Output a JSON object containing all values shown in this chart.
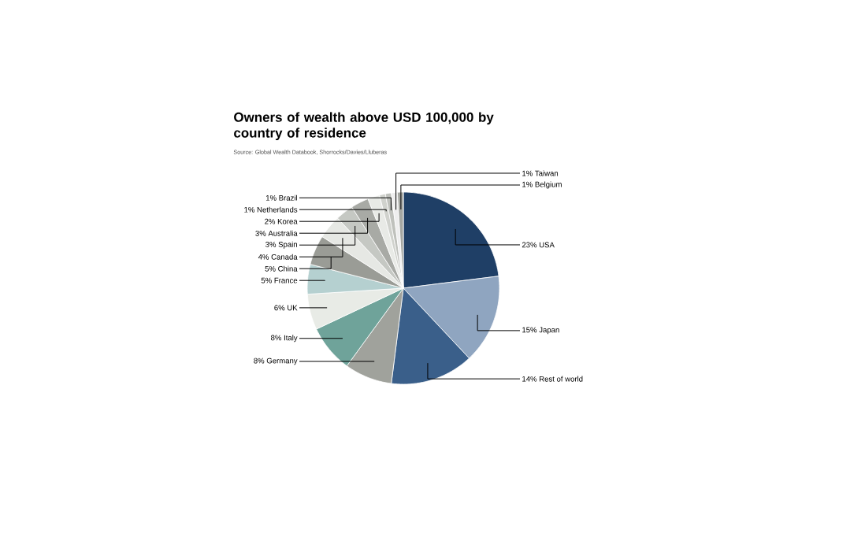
{
  "chart_data": {
    "type": "pie",
    "title": "Owners of wealth above USD 100,000 by country of residence",
    "annotations": [
      "Source: Global Wealth Databook, Shorrocks/Davies/Lluberas"
    ],
    "categories": [
      "USA",
      "Japan",
      "Rest of world",
      "Germany",
      "Italy",
      "UK",
      "France",
      "China",
      "Canada",
      "Spain",
      "Australia",
      "Korea",
      "Netherlands",
      "Brazil",
      "Taiwan",
      "Belgium"
    ],
    "values": [
      23,
      15,
      14,
      8,
      8,
      6,
      5,
      5,
      4,
      3,
      3,
      2,
      1,
      1,
      1,
      1
    ],
    "value_labels": [
      "23%",
      "15%",
      "14%",
      "8%",
      "8%",
      "6%",
      "5%",
      "5%",
      "4%",
      "3%",
      "3%",
      "2%",
      "1%",
      "1%",
      "1%",
      "1%"
    ],
    "colors": [
      "#1f3f66",
      "#8fa5c0",
      "#3a5f8a",
      "#a0a29c",
      "#6fa39a",
      "#e8ebe6",
      "#b5d0d0",
      "#9a9c96",
      "#e6e8e4",
      "#c5c8c3",
      "#a8aaa5",
      "#e8eae6",
      "#d0d2cd",
      "#bfc1bc",
      "#eeeeee",
      "#a5a7a2"
    ]
  }
}
